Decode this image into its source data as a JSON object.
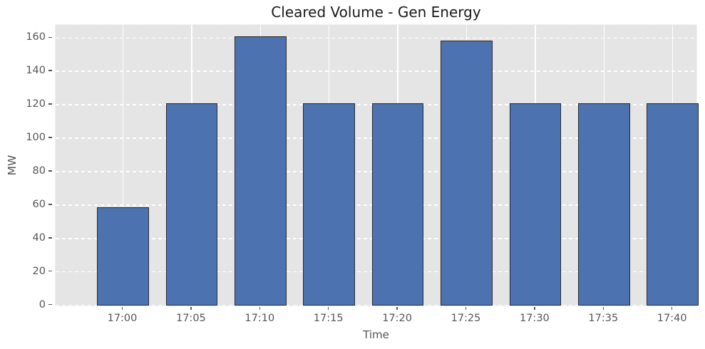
{
  "chart_data": {
    "type": "bar",
    "title": "Cleared Volume - Gen Energy",
    "xlabel": "Time",
    "ylabel": "MW",
    "categories": [
      "17:00",
      "17:05",
      "17:10",
      "17:15",
      "17:20",
      "17:25",
      "17:30",
      "17:35",
      "17:40"
    ],
    "values": [
      58,
      120,
      160,
      120,
      120,
      157.5,
      120,
      120,
      120
    ],
    "yticks": [
      0,
      20,
      40,
      60,
      80,
      100,
      120,
      140,
      160
    ],
    "ylim": [
      0,
      168
    ],
    "grid": true,
    "legend": false,
    "style": {
      "plot_bg": "#e5e5e5",
      "figure_bg": "#ffffff",
      "grid_color": "#ffffff",
      "bar_fill": "#4c72b0",
      "bar_edge": "#262b33",
      "tick_label_color": "#555555",
      "title_color": "#1a1a1a"
    }
  }
}
